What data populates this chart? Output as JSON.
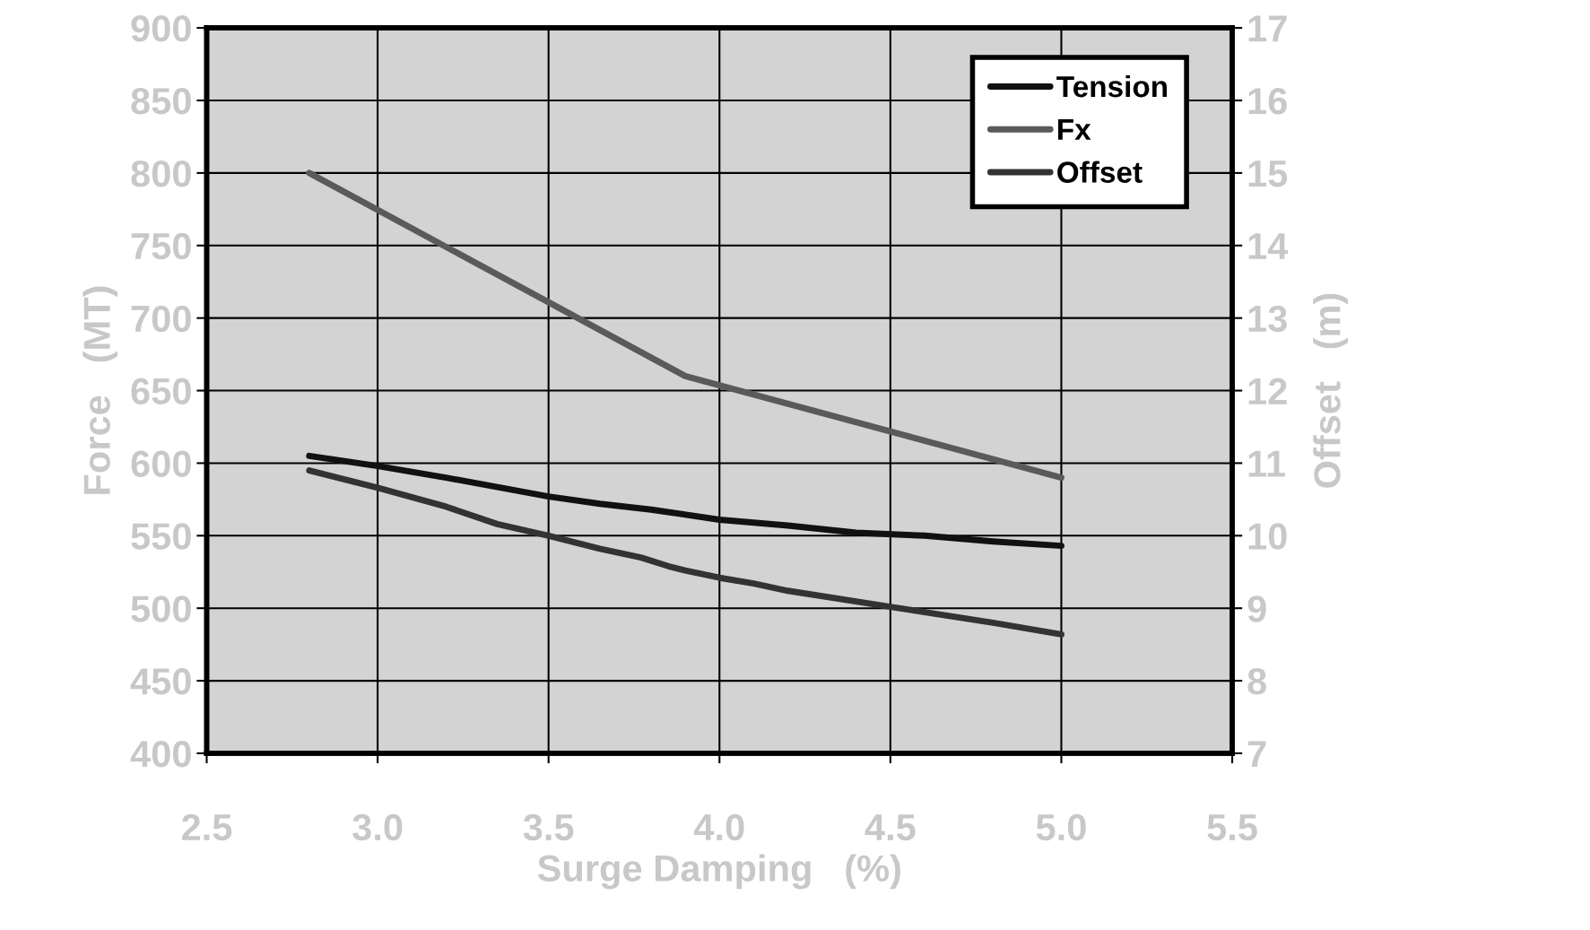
{
  "chart_data": {
    "type": "line",
    "xlabel": "Surge Damping   (%)",
    "ylabel": "Force   (MT)",
    "y2label": "Offset   (m)",
    "xlim": [
      2.5,
      5.5
    ],
    "xticks": [
      {
        "value": 2.5,
        "label": "2.5"
      },
      {
        "value": 3.0,
        "label": "3.0"
      },
      {
        "value": 3.5,
        "label": "3.5"
      },
      {
        "value": 4.0,
        "label": "4.0"
      },
      {
        "value": 4.5,
        "label": "4.5"
      },
      {
        "value": 5.0,
        "label": "5.0"
      },
      {
        "value": 5.5,
        "label": "5.5"
      }
    ],
    "ylim": [
      400,
      900
    ],
    "yticks": [
      400,
      450,
      500,
      550,
      600,
      650,
      700,
      750,
      800,
      850,
      900
    ],
    "y2lim": [
      7,
      17
    ],
    "y2ticks": [
      7,
      8,
      9,
      10,
      11,
      12,
      13,
      14,
      15,
      16,
      17
    ],
    "grid": true,
    "legend": "top right",
    "line_style": "solid",
    "marker": "none",
    "series": [
      {
        "name": "Tension",
        "color": "#111111",
        "x": [
          2.8,
          3.0,
          3.1,
          3.2,
          3.5,
          3.65,
          3.8,
          4.0,
          4.2,
          4.4,
          4.6,
          4.8,
          5.0
        ],
        "values": [
          605,
          598,
          594,
          590,
          577,
          572,
          568,
          561,
          557,
          552,
          550,
          546,
          543
        ]
      },
      {
        "name": "Fx",
        "color": "#5a5a5a",
        "x": [
          2.8,
          3.9,
          5.0
        ],
        "values": [
          800,
          660,
          590
        ]
      },
      {
        "name": "Offset",
        "color": "#333333",
        "axis": "y2",
        "x": [
          2.8,
          3.0,
          3.2,
          3.35,
          3.5,
          3.65,
          3.77,
          3.85,
          3.9,
          4.0,
          4.1,
          4.2,
          4.5,
          4.8,
          5.0
        ],
        "values": [
          10.9,
          10.66,
          10.4,
          10.16,
          10.0,
          9.82,
          9.7,
          9.58,
          9.52,
          9.42,
          9.34,
          9.24,
          9.02,
          8.8,
          8.64
        ]
      }
    ]
  }
}
